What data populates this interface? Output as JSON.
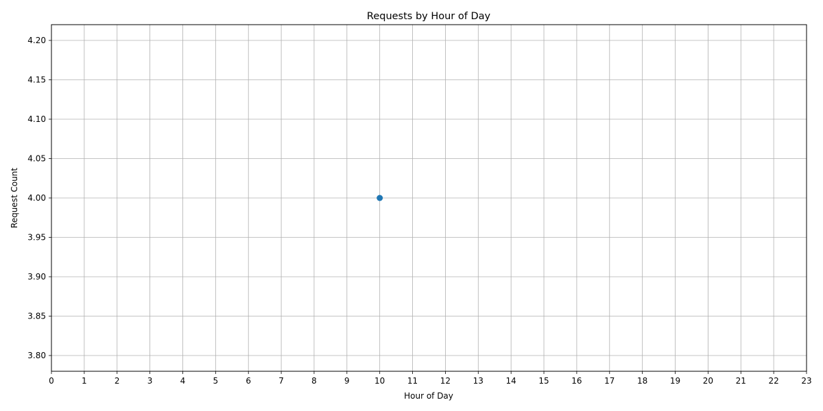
{
  "chart_data": {
    "type": "line",
    "title": "Requests by Hour of Day",
    "xlabel": "Hour of Day",
    "ylabel": "Request Count",
    "xlim": [
      0,
      23
    ],
    "ylim": [
      3.78,
      4.22
    ],
    "xticks": [
      "0",
      "1",
      "2",
      "3",
      "4",
      "5",
      "6",
      "7",
      "8",
      "9",
      "10",
      "11",
      "12",
      "13",
      "14",
      "15",
      "16",
      "17",
      "18",
      "19",
      "20",
      "21",
      "22",
      "23"
    ],
    "yticks": [
      "3.80",
      "3.85",
      "3.90",
      "3.95",
      "4.00",
      "4.05",
      "4.10",
      "4.15",
      "4.20"
    ],
    "grid": true,
    "legend": "none",
    "series": [
      {
        "name": "Requests",
        "color": "#1f77b4",
        "marker": "circle",
        "x": [
          10
        ],
        "y": [
          4
        ]
      }
    ]
  }
}
